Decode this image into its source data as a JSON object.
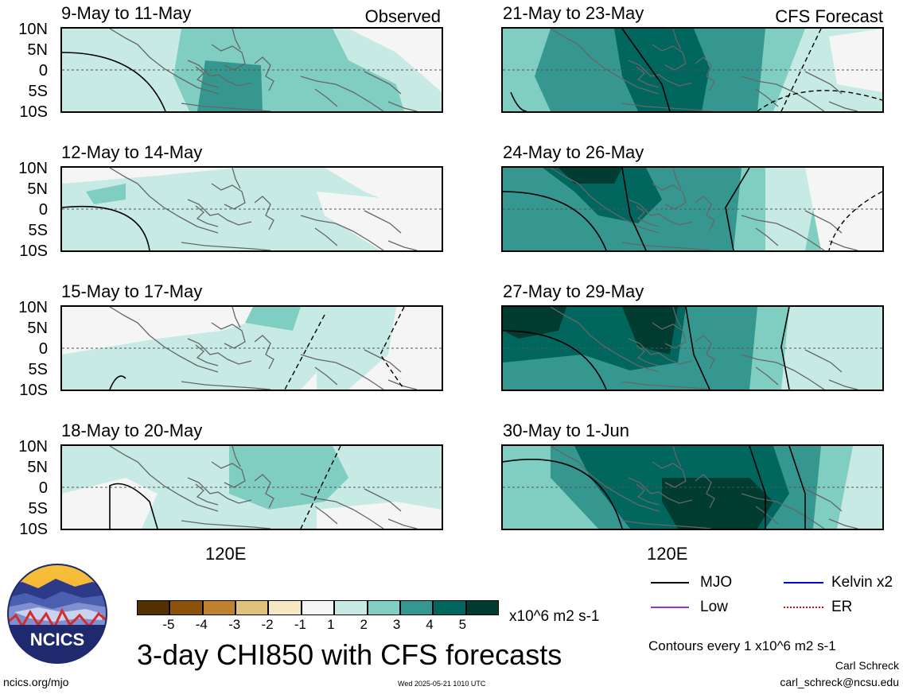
{
  "chart_data": [
    {
      "type": "heatmap",
      "panel": 1,
      "column": "left",
      "title": "9-May to 11-May",
      "tag": "Observed",
      "xtick_label": "120E",
      "ytick_labels": [
        "10N",
        "5N",
        "0",
        "5S",
        "10S"
      ],
      "ylim": [
        -10,
        10
      ],
      "field_level": "weak positive over western Pacific, stronger positive near Indonesia",
      "mjo_contours": [
        -2
      ]
    },
    {
      "type": "heatmap",
      "panel": 2,
      "column": "right",
      "title": "21-May to 23-May",
      "tag": "CFS Forecast",
      "xtick_label": "120E",
      "ytick_labels": [
        "10N",
        "5N",
        "0",
        "5S",
        "10S"
      ],
      "ylim": [
        -10,
        10
      ],
      "field_level": "strong positive over Maritime Continent",
      "mjo_contours": [
        1,
        2
      ]
    },
    {
      "type": "heatmap",
      "panel": 3,
      "column": "left",
      "title": "12-May to 14-May",
      "tag": "",
      "xtick_label": "120E",
      "ytick_labels": [
        "10N",
        "5N",
        "0",
        "5S",
        "10S"
      ],
      "ylim": [
        -10,
        10
      ],
      "field_level": "weak positive",
      "mjo_contours": [
        -1
      ]
    },
    {
      "type": "heatmap",
      "panel": 4,
      "column": "right",
      "title": "24-May to 26-May",
      "tag": "",
      "xtick_label": "120E",
      "ytick_labels": [
        "10N",
        "5N",
        "0",
        "5S",
        "10S"
      ],
      "ylim": [
        -10,
        10
      ],
      "field_level": "strong positive",
      "mjo_contours": [
        1,
        2
      ]
    },
    {
      "type": "heatmap",
      "panel": 5,
      "column": "left",
      "title": "15-May to 17-May",
      "tag": "",
      "xtick_label": "120E",
      "ytick_labels": [
        "10N",
        "5N",
        "0",
        "5S",
        "10S"
      ],
      "ylim": [
        -10,
        10
      ],
      "field_level": "weak positive",
      "mjo_contours": [
        -1
      ]
    },
    {
      "type": "heatmap",
      "panel": 6,
      "column": "right",
      "title": "27-May to 29-May",
      "tag": "",
      "xtick_label": "120E",
      "ytick_labels": [
        "10N",
        "5N",
        "0",
        "5S",
        "10S"
      ],
      "ylim": [
        -10,
        10
      ],
      "field_level": "strong positive",
      "mjo_contours": [
        1,
        2
      ]
    },
    {
      "type": "heatmap",
      "panel": 7,
      "column": "left",
      "title": "18-May to 20-May",
      "tag": "",
      "xtick_label": "120E",
      "ytick_labels": [
        "10N",
        "5N",
        "0",
        "5S",
        "10S"
      ],
      "ylim": [
        -10,
        10
      ],
      "field_level": "weak to moderate positive",
      "mjo_contours": [
        -1
      ]
    },
    {
      "type": "heatmap",
      "panel": 8,
      "column": "right",
      "title": "30-May to 1-Jun",
      "tag": "",
      "xtick_label": "120E",
      "ytick_labels": [
        "10N",
        "5N",
        "0",
        "5S",
        "10S"
      ],
      "ylim": [
        -10,
        10
      ],
      "field_level": "very strong positive",
      "mjo_contours": [
        1,
        2
      ]
    }
  ],
  "colorbar": {
    "levels": [
      "-5",
      "-4",
      "-3",
      "-2",
      "-1",
      "1",
      "2",
      "3",
      "4",
      "5"
    ],
    "colors": [
      "#543005",
      "#8c510a",
      "#bf812d",
      "#dfc27d",
      "#f6e8c3",
      "#f5f5f5",
      "#c7eae5",
      "#80cdc1",
      "#35978f",
      "#01665e",
      "#003c30"
    ],
    "units": "x10^6 m2 s-1"
  },
  "legend": [
    {
      "label": "MJO",
      "color": "#000000",
      "style": "solid"
    },
    {
      "label": "Kelvin x2",
      "color": "#0000cc",
      "style": "solid"
    },
    {
      "label": "Low",
      "color": "#9933cc",
      "style": "solid"
    },
    {
      "label": "ER",
      "color": "#dd0000",
      "style": "dotted"
    }
  ],
  "footer": {
    "main_title": "3-day CHI850 with CFS forecasts",
    "contours_note": "Contours every 1 x10^6 m2 s-1",
    "author": "Carl Schreck",
    "email": "carl_schreck@ncsu.edu",
    "site": "ncics.org/mjo",
    "timestamp": "Wed 2025-05-21 1010 UTC",
    "logo_text": "NCICS"
  },
  "colors": {
    "bg": "#f5f5f5",
    "teal1": "#c7eae5",
    "teal2": "#80cdc1",
    "teal3": "#35978f",
    "teal4": "#01665e",
    "teal5": "#003c30",
    "coast": "#666666"
  }
}
